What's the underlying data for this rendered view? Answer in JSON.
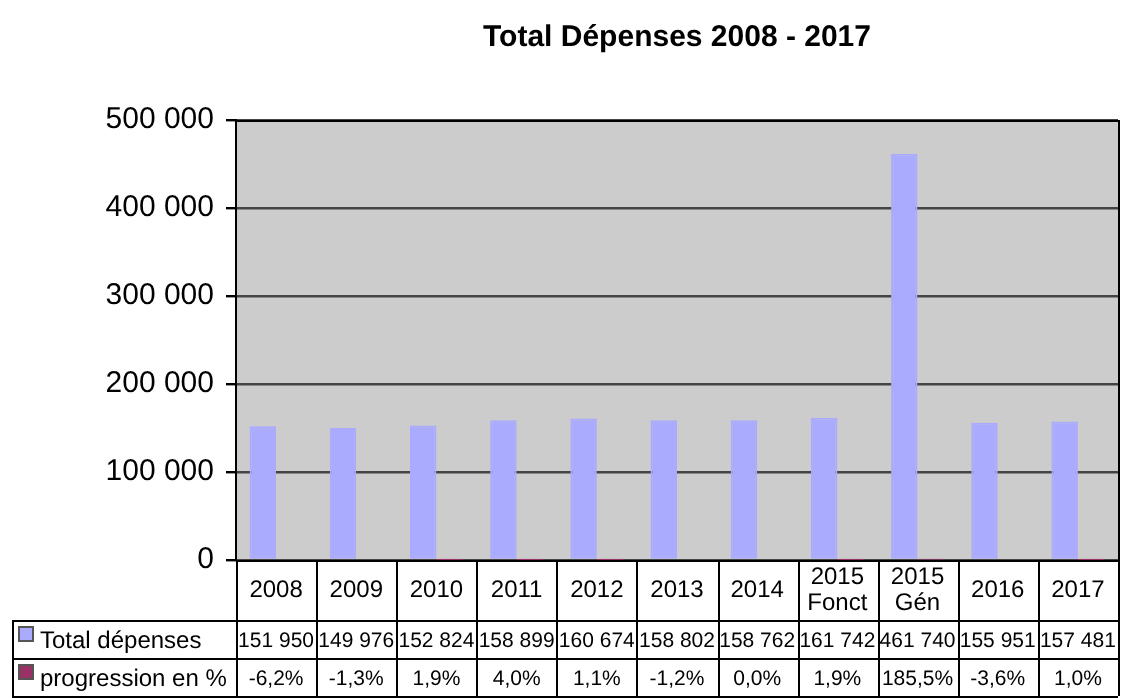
{
  "chart_data": {
    "type": "bar",
    "title": "Total Dépenses 2008 - 2017",
    "categories": [
      "2008",
      "2009",
      "2010",
      "2011",
      "2012",
      "2013",
      "2014",
      "2015 Fonct",
      "2015 Gén",
      "2016",
      "2017"
    ],
    "series": [
      {
        "name": "Total dépenses",
        "color": "#aaaaff",
        "values": [
          151950,
          149976,
          152824,
          158899,
          160674,
          158802,
          158762,
          161742,
          461740,
          155951,
          157481
        ],
        "value_labels": [
          "151 950",
          "149 976",
          "152 824",
          "158 899",
          "160 674",
          "158 802",
          "158 762",
          "161 742",
          "461 740",
          "155 951",
          "157 481"
        ]
      },
      {
        "name": "progression en %",
        "color": "#993366",
        "values": [
          null,
          null,
          1.9,
          4.0,
          1.1,
          null,
          0.0,
          1.9,
          185.5,
          null,
          1.0
        ],
        "value_labels": [
          "-6,2%",
          "-1,3%",
          "1,9%",
          "4,0%",
          "1,1%",
          "-1,2%",
          "0,0%",
          "1,9%",
          "185,5%",
          "-3,6%",
          "1,0%"
        ]
      }
    ],
    "ylim": [
      0,
      500000
    ],
    "yticks": [
      0,
      {
        "value": 100000,
        "label": "100 000"
      },
      {
        "value": 200000,
        "label": "200 000"
      },
      {
        "value": 300000,
        "label": "300 000"
      },
      {
        "value": 400000,
        "label": "400 000"
      },
      {
        "value": 500000,
        "label": "500 000"
      }
    ],
    "grid": "y",
    "legend": "bottom"
  }
}
